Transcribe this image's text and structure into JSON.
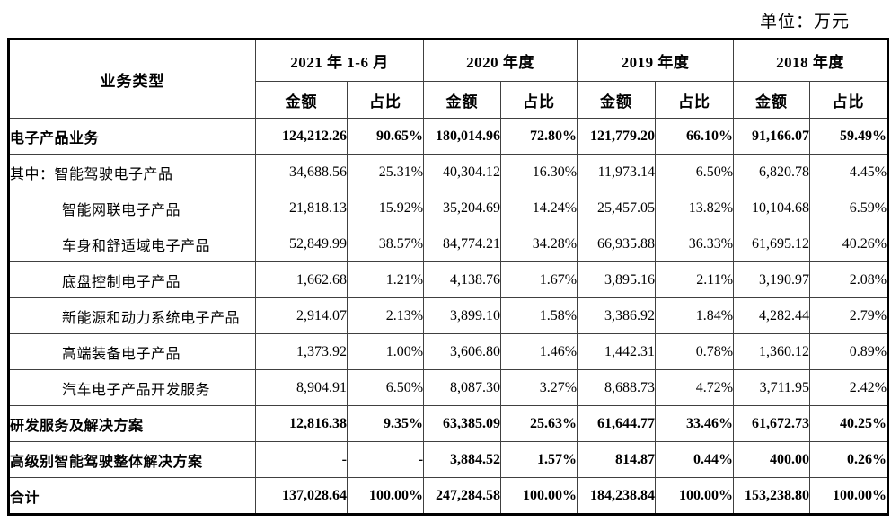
{
  "unit_label": "单位：万元",
  "table": {
    "business_type_header": "业务类型",
    "period_groups": [
      "2021 年 1-6 月",
      "2020 年度",
      "2019 年度",
      "2018 年度"
    ],
    "amount_header": "金额",
    "ratio_header": "占比",
    "rows": [
      {
        "label": "电子产品业务",
        "bold": true,
        "indent": 0,
        "values": [
          "124,212.26",
          "90.65%",
          "180,014.96",
          "72.80%",
          "121,779.20",
          "66.10%",
          "91,166.07",
          "59.49%"
        ]
      },
      {
        "label": "其中：智能驾驶电子产品",
        "bold": false,
        "indent": 0,
        "values": [
          "34,688.56",
          "25.31%",
          "40,304.12",
          "16.30%",
          "11,973.14",
          "6.50%",
          "6,820.78",
          "4.45%"
        ]
      },
      {
        "label": "智能网联电子产品",
        "bold": false,
        "indent": 1,
        "values": [
          "21,818.13",
          "15.92%",
          "35,204.69",
          "14.24%",
          "25,457.05",
          "13.82%",
          "10,104.68",
          "6.59%"
        ]
      },
      {
        "label": "车身和舒适域电子产品",
        "bold": false,
        "indent": 1,
        "values": [
          "52,849.99",
          "38.57%",
          "84,774.21",
          "34.28%",
          "66,935.88",
          "36.33%",
          "61,695.12",
          "40.26%"
        ]
      },
      {
        "label": "底盘控制电子产品",
        "bold": false,
        "indent": 1,
        "values": [
          "1,662.68",
          "1.21%",
          "4,138.76",
          "1.67%",
          "3,895.16",
          "2.11%",
          "3,190.97",
          "2.08%"
        ]
      },
      {
        "label": "新能源和动力系统电子产品",
        "bold": false,
        "indent": 1,
        "values": [
          "2,914.07",
          "2.13%",
          "3,899.10",
          "1.58%",
          "3,386.92",
          "1.84%",
          "4,282.44",
          "2.79%"
        ]
      },
      {
        "label": "高端装备电子产品",
        "bold": false,
        "indent": 1,
        "values": [
          "1,373.92",
          "1.00%",
          "3,606.80",
          "1.46%",
          "1,442.31",
          "0.78%",
          "1,360.12",
          "0.89%"
        ]
      },
      {
        "label": "汽车电子产品开发服务",
        "bold": false,
        "indent": 1,
        "values": [
          "8,904.91",
          "6.50%",
          "8,087.30",
          "3.27%",
          "8,688.73",
          "4.72%",
          "3,711.95",
          "2.42%"
        ]
      },
      {
        "label": "研发服务及解决方案",
        "bold": true,
        "indent": 0,
        "values": [
          "12,816.38",
          "9.35%",
          "63,385.09",
          "25.63%",
          "61,644.77",
          "33.46%",
          "61,672.73",
          "40.25%"
        ]
      },
      {
        "label": "高级别智能驾驶整体解决方案",
        "bold": true,
        "indent": 0,
        "values": [
          "-",
          "-",
          "3,884.52",
          "1.57%",
          "814.87",
          "0.44%",
          "400.00",
          "0.26%"
        ]
      },
      {
        "label": "合计",
        "bold": true,
        "indent": 0,
        "values": [
          "137,028.64",
          "100.00%",
          "247,284.58",
          "100.00%",
          "184,238.84",
          "100.00%",
          "153,238.80",
          "100.00%"
        ]
      }
    ]
  }
}
